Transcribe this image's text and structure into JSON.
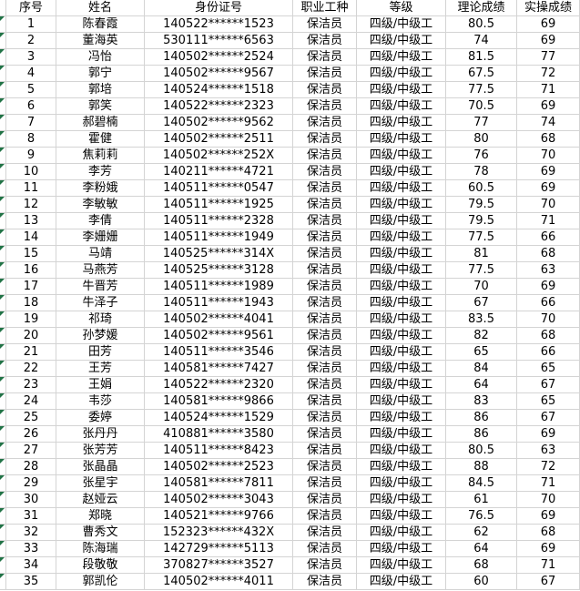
{
  "table": {
    "columns": [
      {
        "key": "seq",
        "label": "序号"
      },
      {
        "key": "name",
        "label": "姓名"
      },
      {
        "key": "id_number",
        "label": "身份证号"
      },
      {
        "key": "occupation",
        "label": "职业工种"
      },
      {
        "key": "level",
        "label": "等级"
      },
      {
        "key": "theory_score",
        "label": "理论成绩"
      },
      {
        "key": "practical_score",
        "label": "实操成绩"
      }
    ],
    "rows": [
      {
        "seq": 1,
        "name": "陈春霞",
        "id_number": "140522******1523",
        "occupation": "保洁员",
        "level": "四级/中级工",
        "theory_score": 80.5,
        "practical_score": 69
      },
      {
        "seq": 2,
        "name": "董海英",
        "id_number": "530111******6563",
        "occupation": "保洁员",
        "level": "四级/中级工",
        "theory_score": 74,
        "practical_score": 69
      },
      {
        "seq": 3,
        "name": "冯怡",
        "id_number": "140502******2524",
        "occupation": "保洁员",
        "level": "四级/中级工",
        "theory_score": 81.5,
        "practical_score": 77
      },
      {
        "seq": 4,
        "name": "郭宁",
        "id_number": "140502******9567",
        "occupation": "保洁员",
        "level": "四级/中级工",
        "theory_score": 67.5,
        "practical_score": 72
      },
      {
        "seq": 5,
        "name": "郭培",
        "id_number": "140524******1518",
        "occupation": "保洁员",
        "level": "四级/中级工",
        "theory_score": 77.5,
        "practical_score": 71
      },
      {
        "seq": 6,
        "name": "郭笑",
        "id_number": "140522******2323",
        "occupation": "保洁员",
        "level": "四级/中级工",
        "theory_score": 70.5,
        "practical_score": 69
      },
      {
        "seq": 7,
        "name": "郝碧楠",
        "id_number": "140502******9562",
        "occupation": "保洁员",
        "level": "四级/中级工",
        "theory_score": 77,
        "practical_score": 74
      },
      {
        "seq": 8,
        "name": "霍健",
        "id_number": "140502******2511",
        "occupation": "保洁员",
        "level": "四级/中级工",
        "theory_score": 80,
        "practical_score": 68
      },
      {
        "seq": 9,
        "name": "焦莉莉",
        "id_number": "140502******252X",
        "occupation": "保洁员",
        "level": "四级/中级工",
        "theory_score": 76,
        "practical_score": 70
      },
      {
        "seq": 10,
        "name": "李芳",
        "id_number": "140211******4721",
        "occupation": "保洁员",
        "level": "四级/中级工",
        "theory_score": 78,
        "practical_score": 69
      },
      {
        "seq": 11,
        "name": "李粉娥",
        "id_number": "140511******0547",
        "occupation": "保洁员",
        "level": "四级/中级工",
        "theory_score": 60.5,
        "practical_score": 69
      },
      {
        "seq": 12,
        "name": "李敏敏",
        "id_number": "140511******1925",
        "occupation": "保洁员",
        "level": "四级/中级工",
        "theory_score": 79.5,
        "practical_score": 70
      },
      {
        "seq": 13,
        "name": "李倩",
        "id_number": "140511******2328",
        "occupation": "保洁员",
        "level": "四级/中级工",
        "theory_score": 79.5,
        "practical_score": 71
      },
      {
        "seq": 14,
        "name": "李姗姗",
        "id_number": "140511******1949",
        "occupation": "保洁员",
        "level": "四级/中级工",
        "theory_score": 77.5,
        "practical_score": 66
      },
      {
        "seq": 15,
        "name": "马靖",
        "id_number": "140525******314X",
        "occupation": "保洁员",
        "level": "四级/中级工",
        "theory_score": 81,
        "practical_score": 68
      },
      {
        "seq": 16,
        "name": "马燕芳",
        "id_number": "140525******3128",
        "occupation": "保洁员",
        "level": "四级/中级工",
        "theory_score": 77.5,
        "practical_score": 63
      },
      {
        "seq": 17,
        "name": "牛晋芳",
        "id_number": "140511******1989",
        "occupation": "保洁员",
        "level": "四级/中级工",
        "theory_score": 70,
        "practical_score": 69
      },
      {
        "seq": 18,
        "name": "牛泽子",
        "id_number": "140511******1943",
        "occupation": "保洁员",
        "level": "四级/中级工",
        "theory_score": 67,
        "practical_score": 66
      },
      {
        "seq": 19,
        "name": "祁琦",
        "id_number": "140502******4041",
        "occupation": "保洁员",
        "level": "四级/中级工",
        "theory_score": 83.5,
        "practical_score": 70
      },
      {
        "seq": 20,
        "name": "孙梦媛",
        "id_number": "140502******9561",
        "occupation": "保洁员",
        "level": "四级/中级工",
        "theory_score": 82,
        "practical_score": 68
      },
      {
        "seq": 21,
        "name": "田芳",
        "id_number": "140511******3546",
        "occupation": "保洁员",
        "level": "四级/中级工",
        "theory_score": 65,
        "practical_score": 66
      },
      {
        "seq": 22,
        "name": "王芳",
        "id_number": "140581******7427",
        "occupation": "保洁员",
        "level": "四级/中级工",
        "theory_score": 84,
        "practical_score": 65
      },
      {
        "seq": 23,
        "name": "王娟",
        "id_number": "140522******2320",
        "occupation": "保洁员",
        "level": "四级/中级工",
        "theory_score": 64,
        "practical_score": 67
      },
      {
        "seq": 24,
        "name": "韦莎",
        "id_number": "140581******9866",
        "occupation": "保洁员",
        "level": "四级/中级工",
        "theory_score": 83,
        "practical_score": 65
      },
      {
        "seq": 25,
        "name": "委婷",
        "id_number": "140524******1529",
        "occupation": "保洁员",
        "level": "四级/中级工",
        "theory_score": 86,
        "practical_score": 67
      },
      {
        "seq": 26,
        "name": "张丹丹",
        "id_number": "410881******3580",
        "occupation": "保洁员",
        "level": "四级/中级工",
        "theory_score": 86,
        "practical_score": 69
      },
      {
        "seq": 27,
        "name": "张芳芳",
        "id_number": "140511******8423",
        "occupation": "保洁员",
        "level": "四级/中级工",
        "theory_score": 80.5,
        "practical_score": 63
      },
      {
        "seq": 28,
        "name": "张晶晶",
        "id_number": "140502******2523",
        "occupation": "保洁员",
        "level": "四级/中级工",
        "theory_score": 88,
        "practical_score": 72
      },
      {
        "seq": 29,
        "name": "张星宇",
        "id_number": "140581******7811",
        "occupation": "保洁员",
        "level": "四级/中级工",
        "theory_score": 84.5,
        "practical_score": 71
      },
      {
        "seq": 30,
        "name": "赵娅云",
        "id_number": "140502******3043",
        "occupation": "保洁员",
        "level": "四级/中级工",
        "theory_score": 61,
        "practical_score": 70
      },
      {
        "seq": 31,
        "name": "郑晓",
        "id_number": "140521******9766",
        "occupation": "保洁员",
        "level": "四级/中级工",
        "theory_score": 76.5,
        "practical_score": 69
      },
      {
        "seq": 32,
        "name": "曹秀文",
        "id_number": "152323******432X",
        "occupation": "保洁员",
        "level": "四级/中级工",
        "theory_score": 62,
        "practical_score": 68
      },
      {
        "seq": 33,
        "name": "陈海瑞",
        "id_number": "142729******5113",
        "occupation": "保洁员",
        "level": "四级/中级工",
        "theory_score": 64,
        "practical_score": 69
      },
      {
        "seq": 34,
        "name": "段敬敬",
        "id_number": "370827******3527",
        "occupation": "保洁员",
        "level": "四级/中级工",
        "theory_score": 68,
        "practical_score": 71
      },
      {
        "seq": 35,
        "name": "郭凯伦",
        "id_number": "140502******4011",
        "occupation": "保洁员",
        "level": "四级/中级工",
        "theory_score": 60,
        "practical_score": 67
      }
    ]
  },
  "colors": {
    "grid_line": "#d4d4d4",
    "error_triangle": "#217346",
    "text": "#000000",
    "background": "#ffffff"
  }
}
